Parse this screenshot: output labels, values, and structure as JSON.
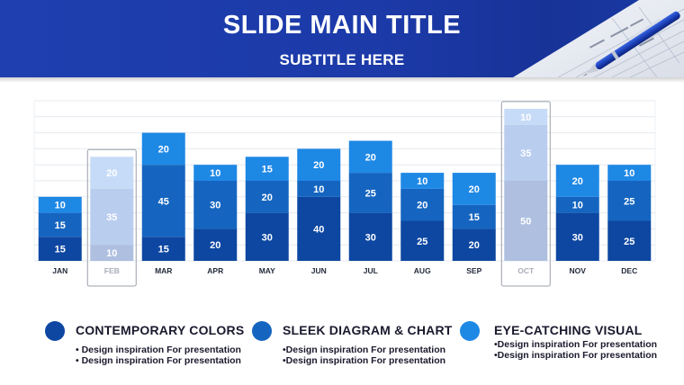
{
  "header": {
    "title": "SLIDE MAIN TITLE",
    "subtitle": "SUBTITLE HERE"
  },
  "colors": {
    "header_bg": "#1f3fb0",
    "dark": "#0d47a1",
    "mid": "#1565c0",
    "light": "#1e88e5",
    "faded_dark": "#aebfe0",
    "faded_mid": "#b9cdef",
    "faded_light": "#c6dbf7"
  },
  "chart_data": {
    "type": "bar",
    "stacked": true,
    "categories": [
      "JAN",
      "FEB",
      "MAR",
      "APR",
      "MAY",
      "JUN",
      "JUL",
      "AUG",
      "SEP",
      "OCT",
      "NOV",
      "DEC"
    ],
    "series": [
      {
        "values": [
          15,
          10,
          15,
          20,
          30,
          40,
          30,
          25,
          20,
          50,
          30,
          25
        ]
      },
      {
        "values": [
          15,
          35,
          45,
          30,
          20,
          10,
          25,
          20,
          15,
          35,
          10,
          25
        ]
      },
      {
        "values": [
          10,
          20,
          20,
          10,
          15,
          20,
          20,
          10,
          20,
          10,
          20,
          10
        ]
      }
    ],
    "highlighted_categories": [
      "FEB",
      "OCT"
    ],
    "ylim": [
      0,
      100
    ],
    "grid": true,
    "legend": "none"
  },
  "legend": [
    {
      "title": "CONTEMPORARY COLORS",
      "color": "#0d47a1",
      "lines": [
        "• Design inspiration For presentation",
        "• Design inspiration For presentation"
      ]
    },
    {
      "title": "SLEEK DIAGRAM & CHART",
      "color": "#1565c0",
      "lines": [
        "•Design inspiration For presentation",
        "•Design inspiration For presentation"
      ]
    },
    {
      "title": "EYE-CATCHING VISUAL",
      "color": "#1e88e5",
      "lines": [
        "•Design inspiration For presentation",
        "•Design inspiration For presentation"
      ]
    }
  ]
}
